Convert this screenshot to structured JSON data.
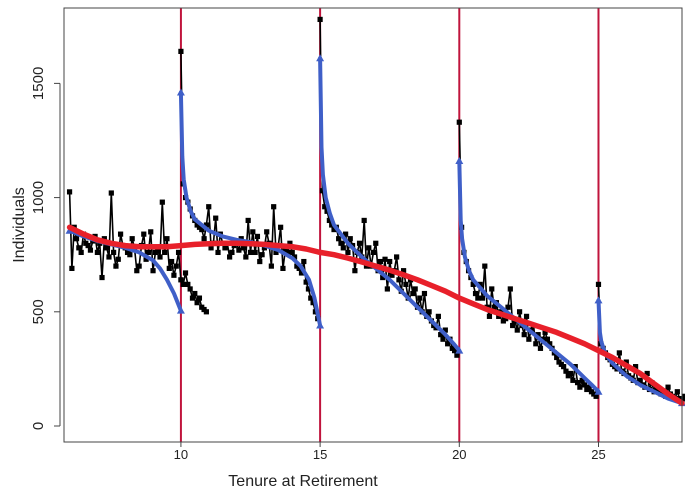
{
  "chart_data": {
    "type": "line",
    "title": "",
    "xlabel": "Tenure at Retirement",
    "ylabel": "Individuals",
    "xlim": [
      5.8,
      28.0
    ],
    "ylim": [
      -70,
      1830
    ],
    "xticks": [
      10,
      15,
      20,
      25
    ],
    "yticks": [
      0,
      500,
      1000,
      1500
    ],
    "vlines": [
      10,
      15,
      20,
      25
    ],
    "grid": false,
    "colors": {
      "observed": "#000000",
      "segment_fit": "#3f5fc8",
      "overall_fit": "#e8202a",
      "vline": "#c0143c"
    },
    "series": [
      {
        "role": "observed",
        "step": 0.0833,
        "segments": [
          {
            "x_start": 6.0,
            "values": [
              1025,
              690,
              870,
              820,
              780,
              760,
              840,
              800,
              790,
              770,
              810,
              830,
              760,
              800,
              650,
              820,
              780,
              740,
              1020,
              760,
              700,
              730,
              840,
              790,
              780,
              760,
              750,
              820,
              780,
              680,
              700,
              790,
              840,
              730,
              760,
              850,
              680,
              760,
              770,
              740,
              980,
              760,
              820,
              690,
              720,
              660,
              700,
              760,
              640,
              620,
              670,
              620,
              600,
              560,
              580,
              540,
              560,
              520,
              510,
              500
            ]
          },
          {
            "x_start": 10.0,
            "values": [
              1640,
              1060,
              1000,
              980,
              950,
              920,
              900,
              880,
              870,
              860,
              820,
              880,
              960,
              780,
              800,
              910,
              760,
              840,
              800,
              780,
              800,
              740,
              760,
              790,
              800,
              770,
              820,
              780,
              740,
              900,
              760,
              850,
              760,
              830,
              720,
              750,
              780,
              850,
              800,
              700,
              960,
              760,
              790,
              870,
              690,
              770,
              760,
              800,
              760,
              740,
              700,
              690,
              670,
              720,
              630,
              600,
              560,
              540,
              500,
              470
            ]
          },
          {
            "x_start": 15.0,
            "values": [
              1780,
              1030,
              960,
              940,
              900,
              880,
              860,
              870,
              820,
              800,
              780,
              840,
              760,
              820,
              790,
              680,
              760,
              800,
              740,
              900,
              700,
              780,
              700,
              760,
              800,
              680,
              720,
              650,
              730,
              600,
              720,
              660,
              680,
              740,
              640,
              590,
              680,
              620,
              560,
              640,
              580,
              600,
              520,
              560,
              500,
              580,
              480,
              500,
              460,
              440,
              430,
              480,
              400,
              380,
              420,
              360,
              380,
              340,
              330,
              310
            ]
          },
          {
            "x_start": 20.0,
            "values": [
              1330,
              870,
              760,
              720,
              680,
              650,
              620,
              580,
              560,
              620,
              560,
              700,
              520,
              480,
              600,
              520,
              540,
              480,
              500,
              460,
              470,
              520,
              600,
              440,
              460,
              420,
              500,
              440,
              400,
              480,
              380,
              420,
              440,
              360,
              400,
              340,
              380,
              410,
              380,
              360,
              340,
              320,
              300,
              280,
              270,
              260,
              240,
              220,
              230,
              200,
              260,
              190,
              170,
              200,
              180,
              160,
              170,
              150,
              140,
              130
            ]
          },
          {
            "x_start": 25.0,
            "values": [
              620,
              360,
              340,
              320,
              300,
              290,
              270,
              260,
              250,
              320,
              240,
              230,
              280,
              220,
              210,
              200,
              260,
              190,
              200,
              180,
              170,
              230,
              160,
              190,
              150,
              170,
              160,
              140,
              150,
              130,
              170,
              140,
              130,
              120,
              150,
              120,
              110,
              130,
              120,
              140,
              110,
              120,
              130,
              110,
              100,
              110,
              120,
              100,
              95,
              110,
              100,
              95
            ]
          }
        ]
      },
      {
        "role": "segment-fit",
        "segments": [
          {
            "x": [
              6.0,
              6.5,
              7.0,
              7.5,
              8.0,
              8.5,
              9.0,
              9.25,
              9.5,
              9.75,
              10.0
            ],
            "y": [
              855,
              830,
              810,
              795,
              780,
              760,
              725,
              690,
              640,
              580,
              505
            ]
          },
          {
            "x": [
              10.0,
              10.05,
              10.1,
              10.2,
              10.35,
              10.5,
              11.0,
              11.5,
              12.0,
              12.5,
              13.0,
              13.5,
              14.0,
              14.3,
              14.6,
              14.8,
              15.0
            ],
            "y": [
              1460,
              1180,
              1080,
              1000,
              940,
              905,
              855,
              830,
              815,
              805,
              790,
              770,
              735,
              700,
              640,
              560,
              440
            ]
          },
          {
            "x": [
              15.0,
              15.05,
              15.1,
              15.2,
              15.35,
              15.5,
              16.0,
              16.5,
              17.0,
              17.5,
              18.0,
              18.5,
              19.0,
              19.5,
              19.8,
              20.0
            ],
            "y": [
              1610,
              1220,
              1100,
              1000,
              930,
              880,
              800,
              740,
              690,
              640,
              580,
              520,
              460,
              400,
              360,
              330
            ]
          },
          {
            "x": [
              20.0,
              20.05,
              20.1,
              20.2,
              20.35,
              20.5,
              21.0,
              21.5,
              22.0,
              22.5,
              23.0,
              23.5,
              24.0,
              24.5,
              24.8,
              25.0
            ],
            "y": [
              1160,
              900,
              820,
              740,
              680,
              640,
              570,
              520,
              470,
              420,
              370,
              320,
              270,
              210,
              175,
              150
            ]
          },
          {
            "x": [
              25.0,
              25.05,
              25.1,
              25.2,
              25.35,
              25.5,
              26.0,
              26.5,
              27.0,
              27.5,
              28.0
            ],
            "y": [
              550,
              410,
              370,
              330,
              300,
              275,
              220,
              180,
              150,
              120,
              100
            ]
          }
        ]
      },
      {
        "role": "overall-fit",
        "x": [
          6.0,
          6.5,
          7.0,
          7.5,
          8.0,
          8.5,
          9.0,
          9.5,
          10.0,
          10.5,
          11.0,
          11.5,
          12.0,
          12.5,
          13.0,
          13.5,
          14.0,
          14.5,
          15.0,
          15.5,
          16.0,
          16.5,
          17.0,
          17.5,
          18.0,
          18.5,
          19.0,
          19.5,
          20.0,
          20.5,
          21.0,
          21.5,
          22.0,
          22.5,
          23.0,
          23.5,
          24.0,
          24.5,
          25.0,
          25.5,
          26.0,
          26.5,
          27.0,
          27.5,
          28.0
        ],
        "y": [
          870,
          840,
          815,
          800,
          790,
          785,
          785,
          785,
          790,
          795,
          798,
          800,
          800,
          798,
          795,
          790,
          785,
          775,
          760,
          750,
          735,
          718,
          700,
          682,
          662,
          640,
          615,
          590,
          560,
          535,
          510,
          490,
          470,
          450,
          430,
          410,
          385,
          360,
          330,
          300,
          265,
          230,
          185,
          140,
          100
        ]
      }
    ]
  }
}
